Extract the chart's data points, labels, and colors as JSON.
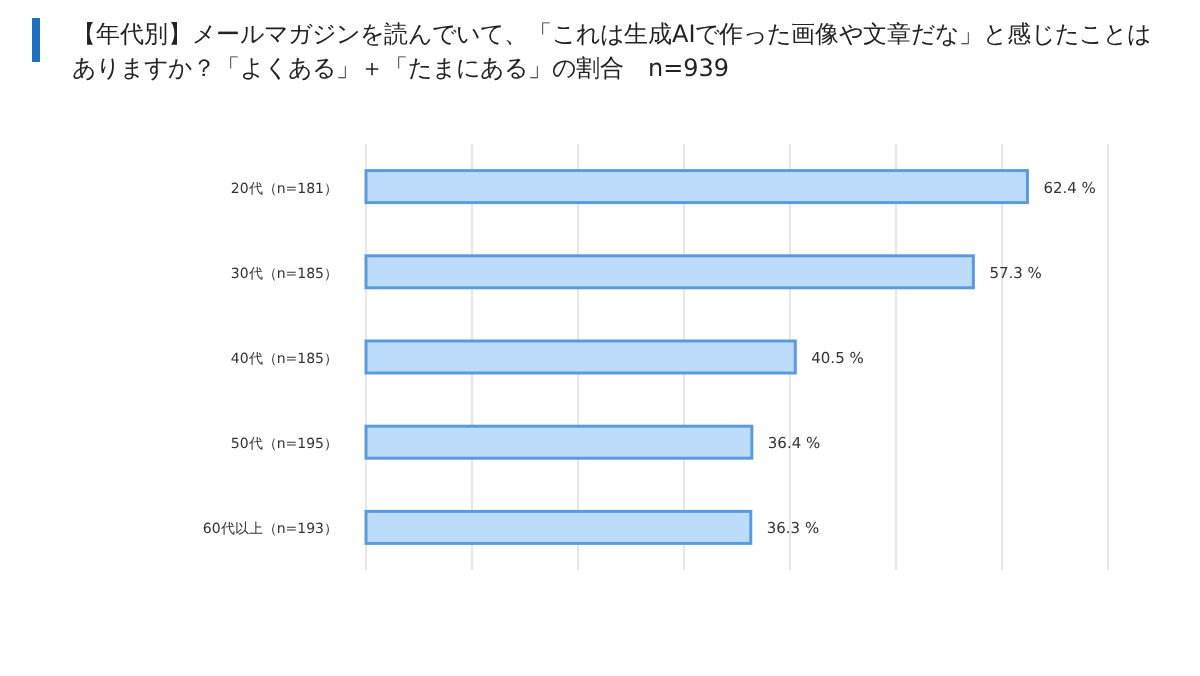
{
  "chart_data": {
    "type": "bar",
    "orientation": "horizontal",
    "title": "【年代別】メールマガジンを読んでいて、「これは生成AIで作った画像や文章だな」と感じたことはありますか？「よくある」＋「たまにある」の割合　n=939",
    "categories": [
      "20代（n=181）",
      "30代（n=185）",
      "40代（n=185）",
      "50代（n=195）",
      "60代以上（n=193）"
    ],
    "values": [
      62.4,
      57.3,
      40.5,
      36.4,
      36.3
    ],
    "value_labels": [
      "62.4 %",
      "57.3 %",
      "40.5 %",
      "36.4 %",
      "36.3 %"
    ],
    "color": "#bddcfb",
    "xlim": [
      0,
      70
    ],
    "xticks": [
      {
        "value": 0,
        "label": null
      },
      {
        "value": 10,
        "label": null
      },
      {
        "value": 20,
        "label": null
      },
      {
        "value": 30,
        "label": null
      },
      {
        "value": 40,
        "label": null
      },
      {
        "value": 50,
        "label": null
      },
      {
        "value": 60,
        "label": null
      },
      {
        "value": 70,
        "label": null
      }
    ],
    "grid": "x",
    "tick_labels": "y"
  }
}
